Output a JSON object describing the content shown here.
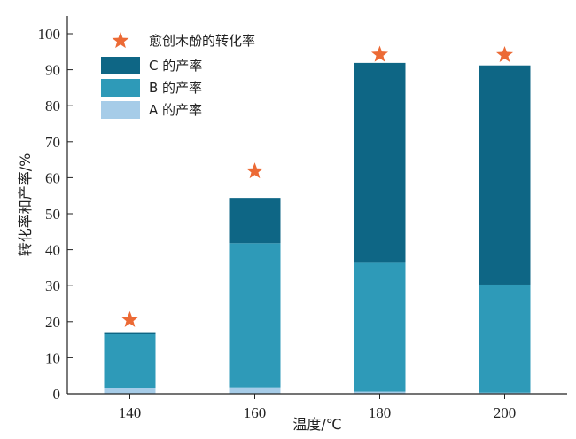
{
  "chart_data": {
    "type": "bar",
    "stacked": true,
    "categories": [
      "140",
      "160",
      "180",
      "200"
    ],
    "series": [
      {
        "name": "A 的产率",
        "color": "#a6cce8",
        "values": [
          1.5,
          1.8,
          0.6,
          0.3
        ]
      },
      {
        "name": "B 的产率",
        "color": "#2e9ab8",
        "values": [
          15.0,
          40.0,
          36.0,
          30.0
        ]
      },
      {
        "name": "C 的产率",
        "color": "#0e6685",
        "values": [
          0.6,
          12.6,
          55.3,
          60.9
        ]
      }
    ],
    "markers": {
      "name": "愈创木酚的转化率",
      "color": "#ec6a35",
      "icon": "star-icon",
      "values": [
        20.5,
        61.8,
        94.2,
        94.1
      ]
    },
    "xlabel": "温度/℃",
    "ylabel": "转化率和产率/%",
    "ylim": [
      0,
      100
    ],
    "yticks": [
      0,
      10,
      20,
      30,
      40,
      50,
      60,
      70,
      80,
      90,
      100
    ],
    "grid": false,
    "legend_position": "top-left"
  }
}
